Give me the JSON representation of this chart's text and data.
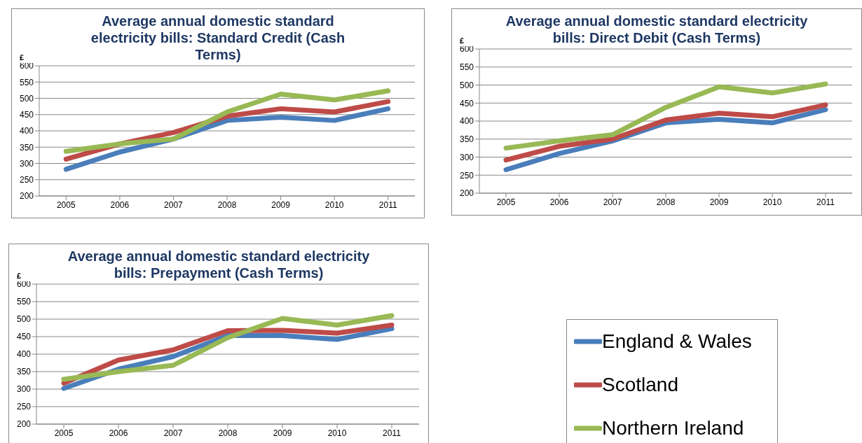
{
  "chart_data": [
    {
      "type": "line",
      "title": "Average annual domestic standard electricity bills: Standard Credit (Cash Terms)",
      "ylabel": "£",
      "categories": [
        "2005",
        "2006",
        "2007",
        "2008",
        "2009",
        "2010",
        "2011"
      ],
      "series": [
        {
          "color": "#4a7ebb",
          "values": [
            282,
            335,
            375,
            432,
            442,
            432,
            468
          ]
        },
        {
          "color": "#be4b48",
          "values": [
            313,
            360,
            395,
            445,
            468,
            458,
            490
          ]
        },
        {
          "color": "#98b954",
          "values": [
            337,
            360,
            375,
            458,
            513,
            495,
            523
          ]
        }
      ],
      "ylim": [
        200,
        600
      ],
      "yticks": [
        200,
        250,
        300,
        350,
        400,
        450,
        500,
        550,
        600
      ],
      "grid": "y",
      "legend": false,
      "marker": "none"
    },
    {
      "type": "line",
      "title": "Average annual domestic standard electricity bills: Direct Debit (Cash Terms)",
      "ylabel": "£",
      "categories": [
        "2005",
        "2006",
        "2007",
        "2008",
        "2009",
        "2010",
        "2011"
      ],
      "series": [
        {
          "color": "#4a7ebb",
          "values": [
            265,
            310,
            345,
            395,
            405,
            395,
            432
          ]
        },
        {
          "color": "#be4b48",
          "values": [
            292,
            330,
            350,
            403,
            422,
            412,
            445
          ]
        },
        {
          "color": "#98b954",
          "values": [
            325,
            345,
            362,
            438,
            495,
            478,
            503
          ]
        }
      ],
      "ylim": [
        200,
        600
      ],
      "yticks": [
        200,
        250,
        300,
        350,
        400,
        450,
        500,
        550,
        600
      ],
      "grid": "y",
      "legend": false,
      "marker": "none"
    },
    {
      "type": "line",
      "title": "Average annual domestic standard electricity bills: Prepayment (Cash Terms)",
      "ylabel": "£",
      "categories": [
        "2005",
        "2006",
        "2007",
        "2008",
        "2009",
        "2010",
        "2011"
      ],
      "series": [
        {
          "name": "England & Wales",
          "color": "#4a7ebb",
          "values": [
            302,
            357,
            393,
            453,
            453,
            442,
            473
          ]
        },
        {
          "name": "Scotland",
          "color": "#be4b48",
          "values": [
            317,
            383,
            412,
            467,
            468,
            460,
            483
          ]
        },
        {
          "name": "Northern Ireland",
          "color": "#98b954",
          "values": [
            328,
            350,
            368,
            447,
            502,
            483,
            510
          ]
        }
      ],
      "ylim": [
        200,
        600
      ],
      "yticks": [
        200,
        250,
        300,
        350,
        400,
        450,
        500,
        550,
        600
      ],
      "grid": "y",
      "legend": "right",
      "marker": "none"
    }
  ]
}
